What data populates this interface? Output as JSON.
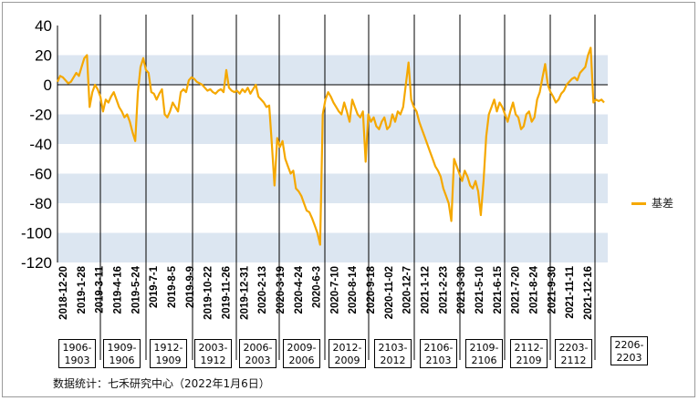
{
  "chart_data": {
    "type": "line",
    "ylim": [
      -120,
      40
    ],
    "y_ticks": [
      "40",
      "20",
      "0",
      "-20",
      "-40",
      "-60",
      "-80",
      "-100",
      "-120"
    ],
    "x_ticks": [
      "2018-12-20",
      "2019-1-28",
      "2019-3-11",
      "2019-4-16",
      "2019-5-24",
      "2019-7-1",
      "2019-8-5",
      "2019-9-9",
      "2019-10-22",
      "2019-11-26",
      "2019-12-31",
      "2020-2-13",
      "2020-3-19",
      "2020-4-24",
      "2020-6-3",
      "2020-7-10",
      "2020-8-14",
      "2020-9-18",
      "2020-11-02",
      "2020-12-7",
      "2021-1-12",
      "2021-2-23",
      "2021-3-30",
      "2021-5-10",
      "2021-6-15",
      "2021-7-20",
      "2021-8-24",
      "2021-9-30",
      "2021-11-11",
      "2021-12-16"
    ],
    "series": [
      {
        "name": "基差",
        "color": "#F5A800",
        "values": [
          2,
          6,
          5,
          3,
          1,
          2,
          5,
          8,
          6,
          12,
          18,
          20,
          -15,
          -5,
          0,
          -3,
          -8,
          -18,
          -10,
          -12,
          -8,
          -5,
          -10,
          -15,
          -18,
          -22,
          -20,
          -25,
          -32,
          -38,
          -5,
          12,
          18,
          10,
          8,
          -5,
          -6,
          -10,
          -6,
          -3,
          -20,
          -22,
          -18,
          -12,
          -15,
          -18,
          -5,
          -3,
          -5,
          3,
          5,
          4,
          2,
          1,
          0,
          -2,
          -4,
          -3,
          -5,
          -6,
          -4,
          -3,
          -5,
          10,
          -2,
          -4,
          -5,
          -4,
          -6,
          -3,
          -5,
          -2,
          -6,
          -3,
          0,
          -8,
          -10,
          -12,
          -15,
          -14,
          -40,
          -68,
          -36,
          -42,
          -38,
          -50,
          -55,
          -60,
          -58,
          -70,
          -72,
          -75,
          -80,
          -85,
          -86,
          -90,
          -95,
          -100,
          -108,
          -20,
          -10,
          -5,
          -8,
          -12,
          -15,
          -18,
          -20,
          -12,
          -18,
          -25,
          -10,
          -15,
          -20,
          -22,
          -18,
          -52,
          -20,
          -25,
          -22,
          -28,
          -30,
          -25,
          -22,
          -30,
          -28,
          -20,
          -25,
          -18,
          -20,
          -15,
          0,
          15,
          -10,
          -15,
          -18,
          -25,
          -30,
          -35,
          -40,
          -45,
          -50,
          -55,
          -58,
          -62,
          -70,
          -75,
          -80,
          -92,
          -50,
          -55,
          -60,
          -65,
          -58,
          -62,
          -68,
          -70,
          -65,
          -72,
          -88,
          -65,
          -35,
          -20,
          -15,
          -10,
          -18,
          -12,
          -15,
          -20,
          -25,
          -18,
          -12,
          -20,
          -22,
          -30,
          -28,
          -20,
          -18,
          -25,
          -22,
          -10,
          -5,
          5,
          14,
          0,
          -5,
          -8,
          -12,
          -10,
          -6,
          -4,
          0,
          2,
          4,
          5,
          3,
          8,
          10,
          12,
          20,
          25,
          -12,
          -10,
          -11,
          -10,
          -12
        ]
      }
    ],
    "legend_position": "right",
    "bands": [
      [
        0,
        20
      ],
      [
        -40,
        -20
      ],
      [
        -80,
        -60
      ],
      [
        -120,
        -100
      ]
    ]
  },
  "contracts": [
    [
      "1906-",
      "1903"
    ],
    [
      "1909-",
      "1906"
    ],
    [
      "1912-",
      "1909"
    ],
    [
      "2003-",
      "1912"
    ],
    [
      "2006-",
      "2003"
    ],
    [
      "2009-",
      "2006"
    ],
    [
      "2012-",
      "2009"
    ],
    [
      "2103-",
      "2012"
    ],
    [
      "2106-",
      "2103"
    ],
    [
      "2109-",
      "2106"
    ],
    [
      "2112-",
      "2109"
    ],
    [
      "2203-",
      "2112"
    ],
    [
      "2206-",
      "2203"
    ]
  ],
  "legend_label": "基差",
  "source_text": "数据统计：七禾研究中心（2022年1月6日）"
}
